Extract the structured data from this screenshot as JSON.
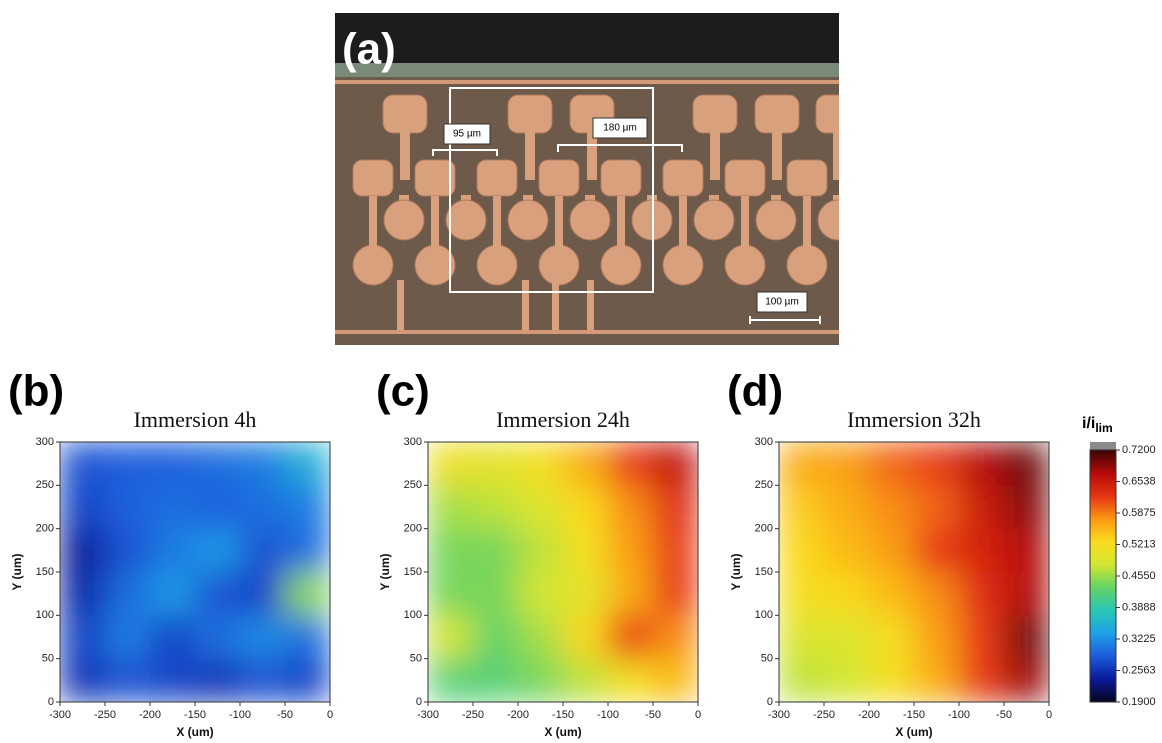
{
  "panel_a": {
    "label": "(a)",
    "scale_labels": [
      "95 µm",
      "180 µm",
      "100 µm"
    ]
  },
  "colorbar": {
    "label": "i/i",
    "label_subscript": "lim",
    "lim": [
      0.19,
      0.72
    ],
    "ticks": [
      {
        "value": 0.72,
        "label": "0.7200"
      },
      0.6538,
      0.5875,
      0.5213,
      {
        "value": 0.455,
        "label": "0.4550"
      },
      0.3888,
      0.3225,
      0.2563,
      {
        "value": 0.19,
        "label": "0.1900"
      }
    ],
    "colors": [
      "#050520",
      "#0a1a9a",
      "#1e5adc",
      "#1ea0e6",
      "#28c8b4",
      "#64d264",
      "#d2e632",
      "#fadc1e",
      "#fa9614",
      "#e63214",
      "#b40a0a",
      "#3a0505"
    ]
  },
  "chart_data": [
    {
      "type": "heatmap",
      "panel_label": "(b)",
      "title": "Immersion 4h",
      "xlabel": "X (um)",
      "ylabel": "Y (um)",
      "xlim": [
        -300,
        0
      ],
      "ylim": [
        0,
        300
      ],
      "xticks": [
        -300,
        -250,
        -200,
        -150,
        -100,
        -50,
        0
      ],
      "yticks": [
        0,
        50,
        100,
        150,
        200,
        250,
        300
      ],
      "x": [
        -275,
        -225,
        -175,
        -125,
        -75,
        -25
      ],
      "y": [
        25,
        75,
        125,
        175,
        225,
        275
      ],
      "values": [
        [
          0.26,
          0.28,
          0.27,
          0.26,
          0.28,
          0.27
        ],
        [
          0.27,
          0.31,
          0.27,
          0.3,
          0.32,
          0.3
        ],
        [
          0.25,
          0.3,
          0.33,
          0.28,
          0.27,
          0.45
        ],
        [
          0.24,
          0.28,
          0.31,
          0.33,
          0.28,
          0.3
        ],
        [
          0.27,
          0.29,
          0.3,
          0.29,
          0.3,
          0.31
        ],
        [
          0.28,
          0.29,
          0.29,
          0.3,
          0.31,
          0.35
        ]
      ]
    },
    {
      "type": "heatmap",
      "panel_label": "(c)",
      "title": "Immersion 24h",
      "xlabel": "X (um)",
      "ylabel": "Y (um)",
      "xlim": [
        -300,
        0
      ],
      "ylim": [
        0,
        300
      ],
      "xticks": [
        -300,
        -250,
        -200,
        -150,
        -100,
        -50,
        0
      ],
      "yticks": [
        0,
        50,
        100,
        150,
        200,
        250,
        300
      ],
      "x": [
        -275,
        -225,
        -175,
        -125,
        -75,
        -25
      ],
      "y": [
        25,
        75,
        125,
        175,
        225,
        275
      ],
      "values": [
        [
          0.42,
          0.42,
          0.44,
          0.47,
          0.52,
          0.55
        ],
        [
          0.48,
          0.43,
          0.46,
          0.53,
          0.62,
          0.58
        ],
        [
          0.44,
          0.44,
          0.48,
          0.5,
          0.56,
          0.62
        ],
        [
          0.44,
          0.44,
          0.47,
          0.52,
          0.57,
          0.62
        ],
        [
          0.46,
          0.47,
          0.49,
          0.53,
          0.58,
          0.63
        ],
        [
          0.51,
          0.5,
          0.52,
          0.56,
          0.62,
          0.66
        ]
      ]
    },
    {
      "type": "heatmap",
      "panel_label": "(d)",
      "title": "Immersion 32h",
      "xlabel": "X (um)",
      "ylabel": "Y (um)",
      "xlim": [
        -300,
        0
      ],
      "ylim": [
        0,
        300
      ],
      "xticks": [
        -300,
        -250,
        -200,
        -150,
        -100,
        -50,
        0
      ],
      "yticks": [
        0,
        50,
        100,
        150,
        200,
        250,
        300
      ],
      "x": [
        -275,
        -225,
        -175,
        -125,
        -75,
        -25
      ],
      "y": [
        25,
        75,
        125,
        175,
        225,
        275
      ],
      "values": [
        [
          0.47,
          0.48,
          0.52,
          0.56,
          0.62,
          0.68
        ],
        [
          0.49,
          0.49,
          0.52,
          0.57,
          0.62,
          0.7
        ],
        [
          0.52,
          0.53,
          0.55,
          0.58,
          0.63,
          0.67
        ],
        [
          0.53,
          0.55,
          0.57,
          0.62,
          0.64,
          0.67
        ],
        [
          0.54,
          0.56,
          0.58,
          0.6,
          0.65,
          0.69
        ],
        [
          0.56,
          0.57,
          0.6,
          0.62,
          0.67,
          0.7
        ]
      ]
    }
  ]
}
